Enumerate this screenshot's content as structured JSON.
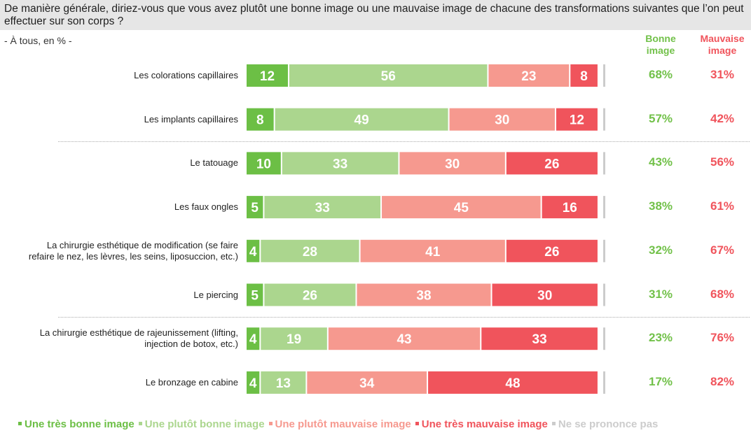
{
  "header": {
    "question": "De manière générale, diriez-vous que vous avez plutôt une bonne image ou une mauvaise image de chacune des transformations suivantes que l’on peut effectuer sur son corps ?",
    "base": "- À tous, en % -"
  },
  "columns": {
    "good_label": "Bonne image",
    "bad_label": "Mauvaise image"
  },
  "colors": {
    "very_good": "#6cbf45",
    "rather_good": "#abd68e",
    "rather_bad": "#f6998f",
    "very_bad": "#f0545c",
    "no_opinion": "#cccccc",
    "good_total": "#72c14a",
    "bad_total": "#f0545c"
  },
  "chart_data": {
    "type": "bar",
    "orientation": "horizontal-stacked-100",
    "title": "De manière générale, diriez-vous que vous avez plutôt une bonne image ou une mauvaise image de chacune des transformations suivantes que l’on peut effectuer sur son corps ?",
    "subtitle": "- À tous, en % -",
    "xlabel": "",
    "ylabel": "",
    "xlim": [
      0,
      100
    ],
    "grid": false,
    "legend_position": "bottom",
    "categories": [
      "Les colorations capillaires",
      "Les implants capillaires",
      "Le tatouage",
      "Les faux ongles",
      "La chirurgie esthétique de modification (se faire refaire le nez, les lèvres, les seins, liposuccion, etc.)",
      "Le piercing",
      "La chirurgie esthétique de rajeunissement (lifting, injection de botox, etc.)",
      "Le bronzage en cabine"
    ],
    "category_lines": [
      [
        "Les colorations capillaires"
      ],
      [
        "Les implants capillaires"
      ],
      [
        "Le tatouage"
      ],
      [
        "Les faux ongles"
      ],
      [
        "La chirurgie esthétique de modification (se faire",
        "refaire le nez, les lèvres, les seins, liposuccion, etc.)"
      ],
      [
        "Le piercing"
      ],
      [
        "La chirurgie esthétique de rajeunissement (lifting,",
        "injection de botox, etc.)"
      ],
      [
        "Le bronzage en cabine"
      ]
    ],
    "series": [
      {
        "name": "Une très bonne image",
        "key": "very_good",
        "values": [
          12,
          8,
          10,
          5,
          4,
          5,
          4,
          4
        ]
      },
      {
        "name": "Une plutôt bonne image",
        "key": "rather_good",
        "values": [
          56,
          49,
          33,
          33,
          28,
          26,
          19,
          13
        ]
      },
      {
        "name": "Une plutôt mauvaise image",
        "key": "rather_bad",
        "values": [
          23,
          30,
          30,
          45,
          41,
          38,
          43,
          34
        ]
      },
      {
        "name": "Une très mauvaise image",
        "key": "very_bad",
        "values": [
          8,
          12,
          26,
          16,
          26,
          30,
          33,
          48
        ]
      },
      {
        "name": "Ne se prononce pas",
        "key": "no_opinion",
        "values": [
          1,
          1,
          1,
          1,
          1,
          1,
          1,
          1
        ],
        "labels_shown": false
      }
    ],
    "totals": {
      "good": [
        "68%",
        "57%",
        "43%",
        "38%",
        "32%",
        "31%",
        "23%",
        "17%"
      ],
      "bad": [
        "31%",
        "42%",
        "56%",
        "61%",
        "67%",
        "68%",
        "76%",
        "82%"
      ]
    },
    "group_dividers_after_index": [
      1,
      5
    ]
  },
  "legend": [
    {
      "label": "Une très bonne image",
      "key": "very_good"
    },
    {
      "label": "Une plutôt bonne image",
      "key": "rather_good"
    },
    {
      "label": "Une plutôt mauvaise image",
      "key": "rather_bad"
    },
    {
      "label": "Une très mauvaise image",
      "key": "very_bad"
    },
    {
      "label": "Ne se prononce pas",
      "key": "no_opinion"
    }
  ]
}
